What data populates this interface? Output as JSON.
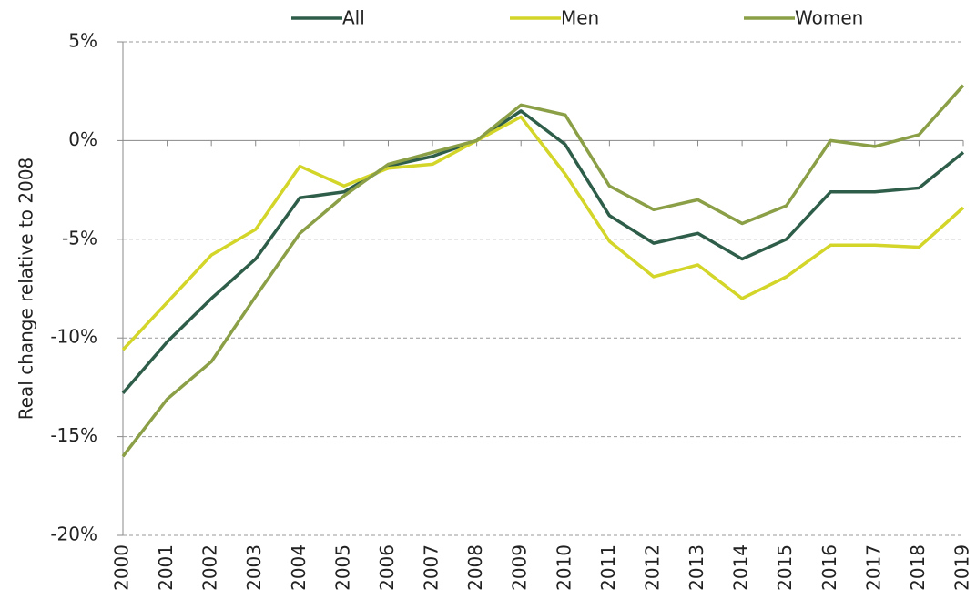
{
  "chart_data": {
    "type": "line",
    "y_label": "Real change relative to 2008",
    "categories": [
      "2000",
      "2001",
      "2002",
      "2003",
      "2004",
      "2005",
      "2006",
      "2007",
      "2008",
      "2009",
      "2010",
      "2011",
      "2012",
      "2013",
      "2014",
      "2015",
      "2016",
      "2017",
      "2018",
      "2019"
    ],
    "series": [
      {
        "name": "All",
        "color": "#2e5e4a",
        "values": [
          -12.8,
          -10.2,
          -8.0,
          -6.0,
          -2.9,
          -2.6,
          -1.3,
          -0.8,
          0,
          1.5,
          -0.2,
          -3.8,
          -5.2,
          -4.7,
          -6.0,
          -5.0,
          -2.6,
          -2.6,
          -2.4,
          -0.6
        ]
      },
      {
        "name": "Men",
        "color": "#d3d528",
        "values": [
          -10.6,
          -8.2,
          -5.8,
          -4.5,
          -1.3,
          -2.3,
          -1.4,
          -1.2,
          0,
          1.2,
          -1.7,
          -5.1,
          -6.9,
          -6.3,
          -8.0,
          -6.9,
          -5.3,
          -5.3,
          -5.4,
          -3.4
        ]
      },
      {
        "name": "Women",
        "color": "#8a9f46",
        "values": [
          -16.0,
          -13.1,
          -11.2,
          -7.9,
          -4.7,
          -2.8,
          -1.2,
          -0.6,
          0,
          1.8,
          1.3,
          -2.3,
          -3.5,
          -3.0,
          -4.2,
          -3.3,
          0.0,
          -0.3,
          0.3,
          2.8
        ]
      }
    ],
    "ylim": [
      -20,
      5
    ],
    "yticks": [
      {
        "value": -20,
        "label": "-20%"
      },
      {
        "value": -15,
        "label": "-15%"
      },
      {
        "value": -10,
        "label": "-10%"
      },
      {
        "value": -5,
        "label": "-5%"
      },
      {
        "value": 0,
        "label": "0%"
      },
      {
        "value": 5,
        "label": "5%"
      }
    ],
    "grid": true,
    "legend": "top"
  }
}
